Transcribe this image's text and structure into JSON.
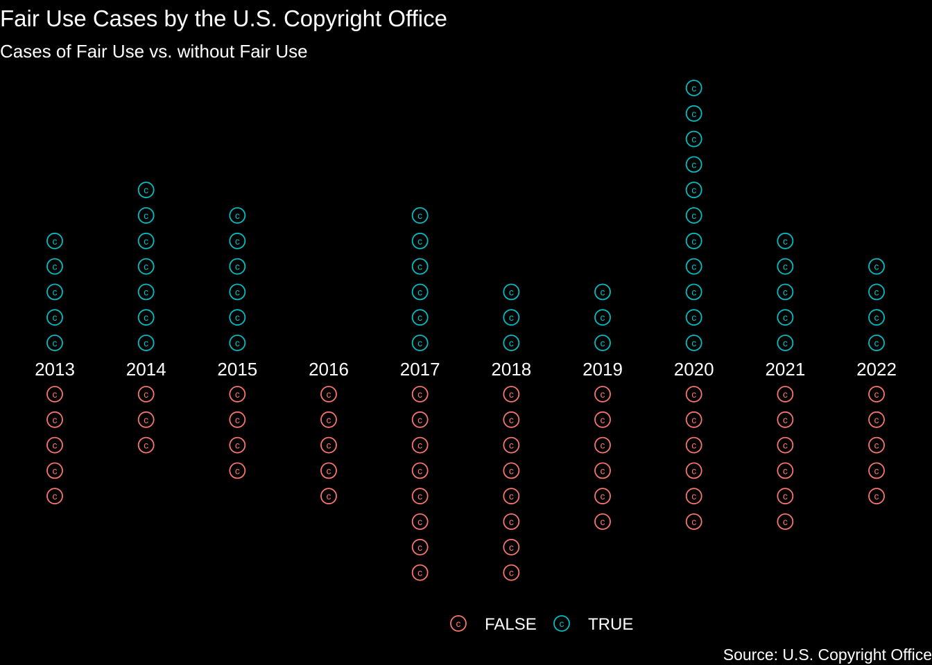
{
  "chart_data": {
    "type": "scatter",
    "title": "Fair Use Cases by the U.S. Copyright Office",
    "subtitle": "Cases of Fair Use vs. without Fair Use",
    "caption": "Source: U.S. Copyright Office",
    "marker_glyph": "c",
    "categories": [
      "2013",
      "2014",
      "2015",
      "2016",
      "2017",
      "2018",
      "2019",
      "2020",
      "2021",
      "2022"
    ],
    "series": [
      {
        "name": "FALSE",
        "color": "#F8766D",
        "values": [
          5,
          3,
          4,
          5,
          8,
          8,
          6,
          6,
          6,
          5
        ]
      },
      {
        "name": "TRUE",
        "color": "#00BFC4",
        "values": [
          5,
          7,
          6,
          0,
          6,
          3,
          3,
          11,
          5,
          4
        ]
      }
    ],
    "legend": {
      "position": "bottom",
      "entries": [
        "FALSE",
        "TRUE"
      ]
    },
    "grid": false,
    "axes": "none"
  }
}
